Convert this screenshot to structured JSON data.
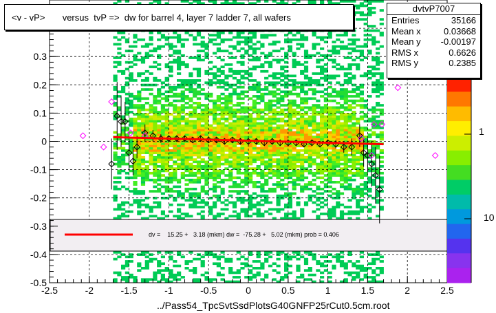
{
  "title": "<v - vP>       versus  tvP =>  dw for barrel 4, layer 7 ladder 7, all wafers",
  "x_axis_title": "../Pass54_TpcSvtSsdPlotsG40GNFP25rCut0.5cm.root",
  "stats": {
    "name": "dvtvP7007",
    "rows": [
      {
        "label": "Entries",
        "value": "35166"
      },
      {
        "label": "Mean x",
        "value": "0.03668"
      },
      {
        "label": "Mean y",
        "value": "-0.00197"
      },
      {
        "label": "RMS x",
        "value": "0.6626"
      },
      {
        "label": "RMS y",
        "value": "0.2385"
      }
    ]
  },
  "fit_legend": "dv =    15.25 +   3.18 (mkm) dw =  -75.28 +   5.02 (mkm) prob = 0.406",
  "palette_labels": [
    "1",
    "10"
  ],
  "colors": {
    "fit_line": "#ff0000",
    "profile_open_black": "#000000",
    "profile_open_magenta": "#ff00ff",
    "legend_box_fill": "#f2eef2"
  },
  "chart_data": {
    "type": "heatmap",
    "xlim": [
      -2.5,
      2.5
    ],
    "ylim": [
      -0.5,
      0.5
    ],
    "x_ticks": [
      "-2.5",
      "-2",
      "-1.5",
      "-1",
      "-0.5",
      "0",
      "0.5",
      "1",
      "1.5",
      "2",
      "2.5"
    ],
    "y_ticks": [
      "-0.5",
      "-0.4",
      "-0.3",
      "-0.2",
      "-0.1",
      "0",
      "0.1",
      "0.2",
      "0.3",
      "0.4"
    ],
    "grid": true,
    "fit_line": {
      "x": [
        -1.7,
        1.7
      ],
      "y": [
        0.015,
        -0.01
      ]
    },
    "profile_black": [
      {
        "x": -1.72,
        "y": -0.08,
        "err": 0.09
      },
      {
        "x": -1.65,
        "y": 0.09,
        "err": 0.12
      },
      {
        "x": -1.6,
        "y": 0.07,
        "err": 0.09
      },
      {
        "x": -1.55,
        "y": 0.07,
        "err": 0.07
      },
      {
        "x": -1.5,
        "y": -0.04,
        "err": 0.06
      },
      {
        "x": -1.45,
        "y": -0.07,
        "err": 0.05
      },
      {
        "x": -1.4,
        "y": -0.02,
        "err": 0.04
      },
      {
        "x": -1.3,
        "y": 0.03,
        "err": 0.03
      },
      {
        "x": -1.2,
        "y": 0.02,
        "err": 0.02
      },
      {
        "x": -1.1,
        "y": 0.01,
        "err": 0.015
      },
      {
        "x": -1.0,
        "y": 0.01,
        "err": 0.01
      },
      {
        "x": -0.9,
        "y": 0.01,
        "err": 0.01
      },
      {
        "x": -0.8,
        "y": 0.01,
        "err": 0.01
      },
      {
        "x": -0.7,
        "y": 0.005,
        "err": 0.01
      },
      {
        "x": -0.6,
        "y": 0.01,
        "err": 0.01
      },
      {
        "x": -0.5,
        "y": 0.005,
        "err": 0.01
      },
      {
        "x": -0.4,
        "y": 0.005,
        "err": 0.01
      },
      {
        "x": -0.3,
        "y": 0.0,
        "err": 0.01
      },
      {
        "x": -0.2,
        "y": 0.005,
        "err": 0.01
      },
      {
        "x": -0.1,
        "y": 0.0,
        "err": 0.01
      },
      {
        "x": 0.0,
        "y": 0.0,
        "err": 0.01
      },
      {
        "x": 0.1,
        "y": 0.0,
        "err": 0.01
      },
      {
        "x": 0.2,
        "y": -0.005,
        "err": 0.01
      },
      {
        "x": 0.3,
        "y": 0.0,
        "err": 0.01
      },
      {
        "x": 0.4,
        "y": -0.005,
        "err": 0.01
      },
      {
        "x": 0.5,
        "y": -0.005,
        "err": 0.01
      },
      {
        "x": 0.6,
        "y": -0.005,
        "err": 0.01
      },
      {
        "x": 0.7,
        "y": -0.01,
        "err": 0.01
      },
      {
        "x": 0.8,
        "y": -0.005,
        "err": 0.01
      },
      {
        "x": 0.9,
        "y": -0.01,
        "err": 0.01
      },
      {
        "x": 1.0,
        "y": -0.005,
        "err": 0.01
      },
      {
        "x": 1.1,
        "y": -0.01,
        "err": 0.015
      },
      {
        "x": 1.2,
        "y": -0.02,
        "err": 0.02
      },
      {
        "x": 1.3,
        "y": -0.02,
        "err": 0.03
      },
      {
        "x": 1.4,
        "y": 0.02,
        "err": 0.04
      },
      {
        "x": 1.45,
        "y": -0.04,
        "err": 0.05
      },
      {
        "x": 1.5,
        "y": -0.05,
        "err": 0.06
      },
      {
        "x": 1.55,
        "y": -0.08,
        "err": 0.08
      },
      {
        "x": 1.6,
        "y": -0.12,
        "err": 0.1
      },
      {
        "x": 1.65,
        "y": -0.17,
        "err": 0.12
      }
    ],
    "profile_magenta": [
      {
        "x": -2.08,
        "y": 0.02,
        "err": 0.0
      },
      {
        "x": -1.82,
        "y": -0.02,
        "err": 0.0
      },
      {
        "x": -1.72,
        "y": 0.14,
        "err": 0.0
      },
      {
        "x": -1.48,
        "y": 0.03,
        "err": 0.0
      },
      {
        "x": -1.3,
        "y": 0.02,
        "err": 0.0
      },
      {
        "x": 1.42,
        "y": 0.01,
        "err": 0.0
      },
      {
        "x": 1.58,
        "y": 0.06,
        "err": 0.0
      },
      {
        "x": 1.68,
        "y": 0.06,
        "err": 0.0
      },
      {
        "x": 1.88,
        "y": 0.19,
        "err": 0.0
      },
      {
        "x": 2.35,
        "y": -0.05,
        "err": 0.0
      },
      {
        "x": 1.55,
        "y": -0.05,
        "err": 0.0
      }
    ]
  }
}
